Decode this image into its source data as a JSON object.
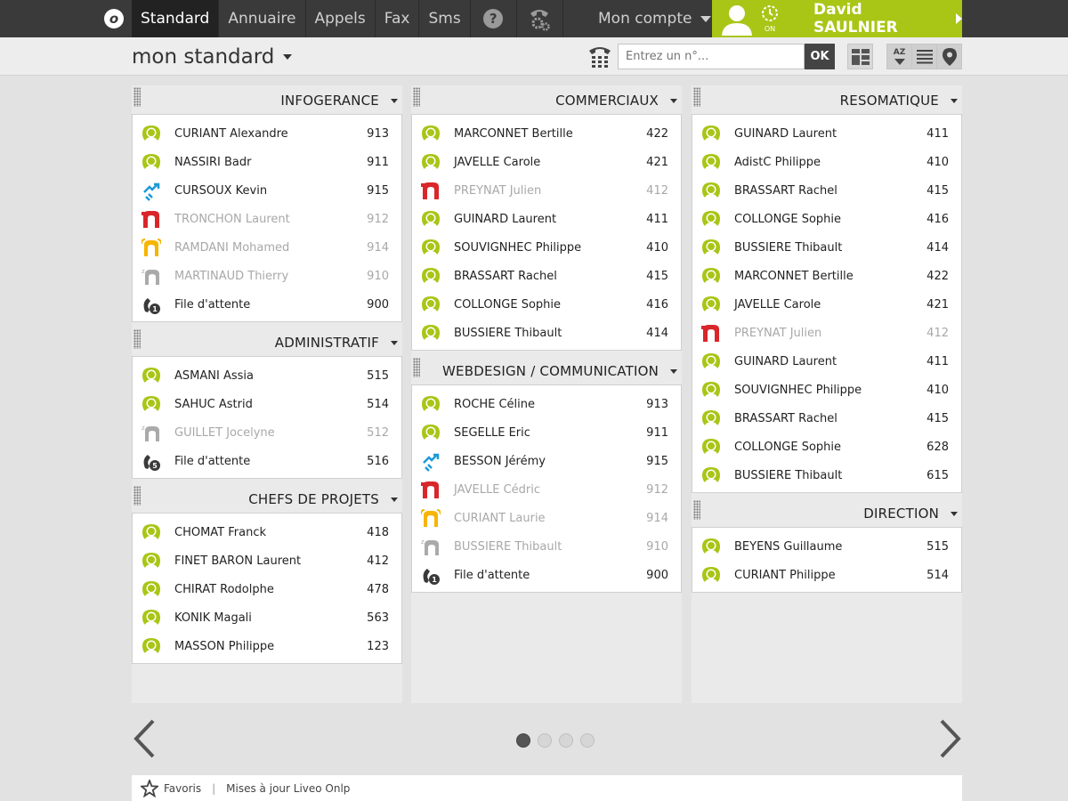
{
  "nav": {
    "logo": "o",
    "tabs": [
      {
        "label": "Standard"
      },
      {
        "label": "Annuaire"
      },
      {
        "label": "Appels"
      },
      {
        "label": "Fax"
      },
      {
        "label": "Sms"
      }
    ],
    "help_icon": "help-icon",
    "settings_icon": "phone-gear-icon",
    "account_label": "Mon compte",
    "user": {
      "name": "David SAULNIER",
      "status": "ON"
    }
  },
  "subheader": {
    "title": "mon standard",
    "dial_placeholder": "Entrez un n°...",
    "ok_label": "OK",
    "sort_label": "AZ"
  },
  "colors": {
    "green": "#a9c516",
    "red": "#d9262a",
    "yellow": "#f5b500",
    "grey": "#aaaaaa",
    "blue": "#1a9ad6",
    "dark": "#3a3a3a"
  },
  "columns": [
    {
      "groups": [
        {
          "title": "INFOGERANCE",
          "rows": [
            {
              "status": "available",
              "name": "CURIANT Alexandre",
              "ext": "913"
            },
            {
              "status": "available",
              "name": "NASSIRI Badr",
              "ext": "911"
            },
            {
              "status": "forward",
              "name": "CURSOUX Kevin",
              "ext": "915"
            },
            {
              "status": "busy",
              "name": "TRONCHON Laurent",
              "ext": "912"
            },
            {
              "status": "ringing",
              "name": "RAMDANI Mohamed",
              "ext": "914"
            },
            {
              "status": "away",
              "name": "MARTINAUD Thierry",
              "ext": "910"
            },
            {
              "status": "queue",
              "name": "File d'attente",
              "ext": "900",
              "queue_count": "1"
            }
          ]
        },
        {
          "title": "ADMINISTRATIF",
          "rows": [
            {
              "status": "available",
              "name": "ASMANI Assia",
              "ext": "515"
            },
            {
              "status": "available",
              "name": "SAHUC Astrid",
              "ext": "514"
            },
            {
              "status": "away",
              "name": "GUILLET Jocelyne",
              "ext": "512"
            },
            {
              "status": "queue",
              "name": "File d'attente",
              "ext": "516",
              "queue_count": "5"
            }
          ]
        },
        {
          "title": "CHEFS DE PROJETS",
          "rows": [
            {
              "status": "available",
              "name": "CHOMAT Franck",
              "ext": "418"
            },
            {
              "status": "available",
              "name": "FINET BARON Laurent",
              "ext": "412"
            },
            {
              "status": "available",
              "name": "CHIRAT Rodolphe",
              "ext": "478"
            },
            {
              "status": "available",
              "name": "KONIK Magali",
              "ext": "563"
            },
            {
              "status": "available",
              "name": "MASSON Philippe",
              "ext": "123"
            }
          ]
        }
      ]
    },
    {
      "groups": [
        {
          "title": "COMMERCIAUX",
          "rows": [
            {
              "status": "available",
              "name": "MARCONNET Bertille",
              "ext": "422"
            },
            {
              "status": "available",
              "name": "JAVELLE Carole",
              "ext": "421"
            },
            {
              "status": "busy",
              "name": "PREYNAT Julien",
              "ext": "412"
            },
            {
              "status": "available",
              "name": "GUINARD Laurent",
              "ext": "411"
            },
            {
              "status": "available",
              "name": "SOUVIGNHEC Philippe",
              "ext": "410"
            },
            {
              "status": "available",
              "name": "BRASSART Rachel",
              "ext": "415"
            },
            {
              "status": "available",
              "name": "COLLONGE Sophie",
              "ext": "416"
            },
            {
              "status": "available",
              "name": "BUSSIERE Thibault",
              "ext": "414"
            }
          ]
        },
        {
          "title": "WEBDESIGN / COMMUNICATION",
          "rows": [
            {
              "status": "available",
              "name": "ROCHE Céline",
              "ext": "913"
            },
            {
              "status": "available",
              "name": "SEGELLE Eric",
              "ext": "911"
            },
            {
              "status": "forward",
              "name": "BESSON Jérémy",
              "ext": "915"
            },
            {
              "status": "busy",
              "name": "JAVELLE Cédric",
              "ext": "912"
            },
            {
              "status": "ringing",
              "name": "CURIANT Laurie",
              "ext": "914"
            },
            {
              "status": "away",
              "name": "BUSSIERE Thibault",
              "ext": "910"
            },
            {
              "status": "queue",
              "name": "File d'attente",
              "ext": "900",
              "queue_count": "1"
            }
          ]
        }
      ]
    },
    {
      "groups": [
        {
          "title": "RESOMATIQUE",
          "rows": [
            {
              "status": "available",
              "name": "GUINARD Laurent",
              "ext": "411"
            },
            {
              "status": "available",
              "name": "AdistC Philippe",
              "ext": "410"
            },
            {
              "status": "available",
              "name": "BRASSART Rachel",
              "ext": "415"
            },
            {
              "status": "available",
              "name": "COLLONGE Sophie",
              "ext": "416"
            },
            {
              "status": "available",
              "name": "BUSSIERE Thibault",
              "ext": "414"
            },
            {
              "status": "available",
              "name": "MARCONNET Bertille",
              "ext": "422"
            },
            {
              "status": "available",
              "name": "JAVELLE Carole",
              "ext": "421"
            },
            {
              "status": "busy",
              "name": "PREYNAT Julien",
              "ext": "412"
            },
            {
              "status": "available",
              "name": "GUINARD Laurent",
              "ext": "411"
            },
            {
              "status": "available",
              "name": "SOUVIGNHEC Philippe",
              "ext": "410"
            },
            {
              "status": "available",
              "name": "BRASSART Rachel",
              "ext": "415"
            },
            {
              "status": "available",
              "name": "COLLONGE Sophie",
              "ext": "628"
            },
            {
              "status": "available",
              "name": "BUSSIERE Thibault",
              "ext": "615"
            }
          ]
        },
        {
          "title": "DIRECTION",
          "rows": [
            {
              "status": "available",
              "name": "BEYENS Guillaume",
              "ext": "515"
            },
            {
              "status": "available",
              "name": "CURIANT Philippe",
              "ext": "514"
            }
          ]
        }
      ]
    }
  ],
  "pager": {
    "pages": 4,
    "current": 1
  },
  "footer": {
    "favorites": "Favoris",
    "separator": "|",
    "updates": "Mises à jour Liveo Onlp"
  }
}
